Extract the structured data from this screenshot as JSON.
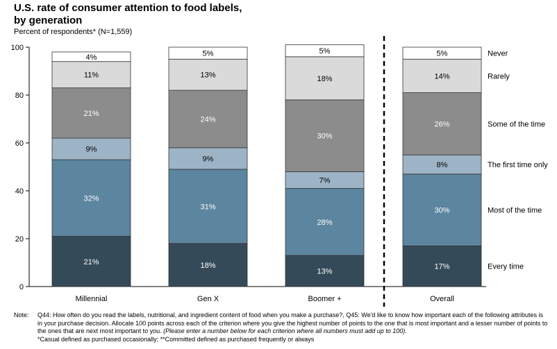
{
  "title_line1": "U.S. rate of consumer attention to food labels,",
  "title_line2": "by generation",
  "subtitle": "Percent of respondents* (N=1,559)",
  "chart_data": {
    "type": "bar",
    "stacked": true,
    "categories": [
      "Millennial",
      "Gen X",
      "Boomer +",
      "Overall"
    ],
    "ylim": [
      0,
      100
    ],
    "yticks": [
      "0",
      "20",
      "40",
      "60",
      "80",
      "100"
    ],
    "series": [
      {
        "name": "Every time",
        "color": "#344a58",
        "values": [
          21,
          18,
          13,
          17
        ],
        "labels": [
          "21%",
          "18%",
          "13%",
          "17%"
        ]
      },
      {
        "name": "Most of the time",
        "color": "#5c859f",
        "values": [
          32,
          31,
          28,
          30
        ],
        "labels": [
          "32%",
          "31%",
          "28%",
          "30%"
        ]
      },
      {
        "name": "The first time only",
        "color": "#9db4c6",
        "values": [
          9,
          9,
          7,
          8
        ],
        "labels": [
          "9%",
          "9%",
          "7%",
          "8%"
        ]
      },
      {
        "name": "Some of the time",
        "color": "#8c8c8c",
        "values": [
          21,
          24,
          30,
          26
        ],
        "labels": [
          "21%",
          "24%",
          "30%",
          "26%"
        ]
      },
      {
        "name": "Rarely",
        "color": "#dadada",
        "values": [
          11,
          13,
          18,
          14
        ],
        "labels": [
          "11%",
          "13%",
          "18%",
          "14%"
        ]
      },
      {
        "name": "Never",
        "color": "#ffffff",
        "values": [
          4,
          5,
          5,
          5
        ],
        "labels": [
          "4%",
          "5%",
          "5%",
          "5%"
        ]
      }
    ]
  },
  "notes": {
    "label": "Note:",
    "text1": "Q44: How often do you read the labels, nutritional, and ingredient content of food when you make a purchase?, Q45: We'd like to know how important each of the following attributes is in your purchase decision. Allocate 100 points across each of the criterion where you give the highest number of points to the one that is most important and a lesser number of points to the ones that are next most important to you. ",
    "text1_italic": "(Please enter a number below for each criterion where all numbers must add up to 100)",
    "text1_end": ".",
    "text2": "*Casual defined as purchased occasionally; **Committed defined as purchased frequently or always"
  }
}
